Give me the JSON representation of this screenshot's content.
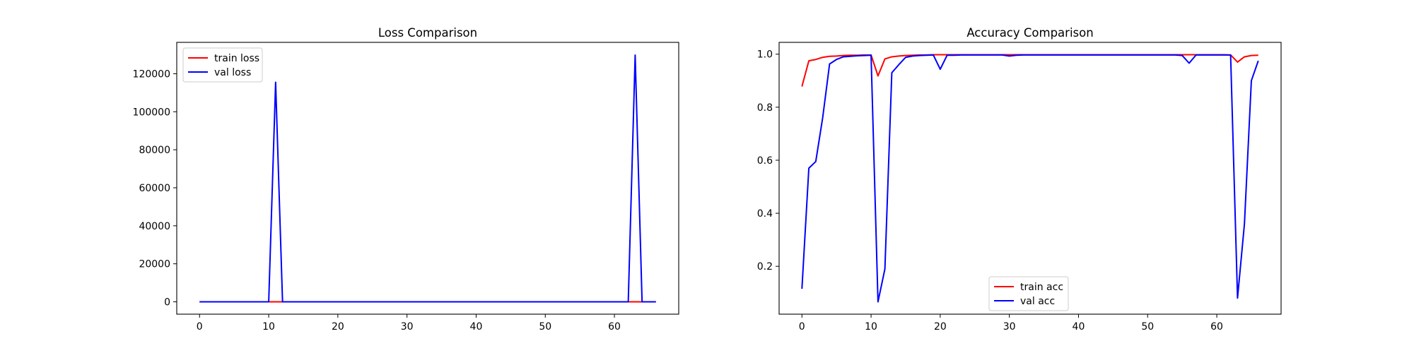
{
  "chart_data": [
    {
      "type": "line",
      "title": "Loss Comparison",
      "xlabel": "",
      "ylabel": "",
      "xlim": [
        -3.3,
        69.3
      ],
      "ylim": [
        -6500,
        136500
      ],
      "xticks": [
        0,
        10,
        20,
        30,
        40,
        50,
        60
      ],
      "yticks": [
        0,
        20000,
        40000,
        60000,
        80000,
        100000,
        120000
      ],
      "grid": false,
      "legend_position": "upper-left",
      "series": [
        {
          "name": "train loss",
          "color": "#ff0000",
          "x": [
            0,
            1,
            2,
            3,
            4,
            5,
            6,
            7,
            8,
            9,
            10,
            11,
            12,
            13,
            14,
            15,
            16,
            17,
            18,
            19,
            20,
            21,
            22,
            23,
            24,
            25,
            26,
            27,
            28,
            29,
            30,
            31,
            32,
            33,
            34,
            35,
            36,
            37,
            38,
            39,
            40,
            41,
            42,
            43,
            44,
            45,
            46,
            47,
            48,
            49,
            50,
            51,
            52,
            53,
            54,
            55,
            56,
            57,
            58,
            59,
            60,
            61,
            62,
            63,
            64,
            65,
            66
          ],
          "y": [
            0.4,
            0.1,
            0.06,
            0.05,
            0.04,
            0.03,
            0.03,
            0.02,
            0.02,
            0.02,
            0.02,
            0.3,
            0.08,
            0.05,
            0.04,
            0.03,
            0.03,
            0.02,
            0.02,
            0.02,
            0.02,
            0.02,
            0.02,
            0.01,
            0.01,
            0.01,
            0.01,
            0.01,
            0.01,
            0.01,
            0.01,
            0.01,
            0.01,
            0.01,
            0.01,
            0.01,
            0.01,
            0.01,
            0.01,
            0.01,
            0.01,
            0.01,
            0.01,
            0.01,
            0.01,
            0.01,
            0.01,
            0.01,
            0.01,
            0.01,
            0.01,
            0.01,
            0.01,
            0.01,
            0.01,
            0.01,
            0.01,
            0.01,
            0.01,
            0.01,
            0.01,
            0.01,
            0.02,
            0.1,
            0.05,
            0.03,
            0.03
          ]
        },
        {
          "name": "val loss",
          "color": "#0000ff",
          "x": [
            0,
            1,
            2,
            3,
            4,
            5,
            6,
            7,
            8,
            9,
            10,
            11,
            12,
            13,
            14,
            15,
            16,
            17,
            18,
            19,
            20,
            21,
            22,
            23,
            24,
            25,
            26,
            27,
            28,
            29,
            30,
            31,
            32,
            33,
            34,
            35,
            36,
            37,
            38,
            39,
            40,
            41,
            42,
            43,
            44,
            45,
            46,
            47,
            48,
            49,
            50,
            51,
            52,
            53,
            54,
            55,
            56,
            57,
            58,
            59,
            60,
            61,
            62,
            63,
            64,
            65,
            66
          ],
          "y": [
            5,
            2,
            1.5,
            1,
            0.5,
            0.3,
            0.2,
            0.2,
            0.2,
            0.2,
            0.3,
            115500,
            1.5,
            0.3,
            0.2,
            0.1,
            0.1,
            0.1,
            0.1,
            0.1,
            0.2,
            0.1,
            0.1,
            0.1,
            0.1,
            0.1,
            0.1,
            0.1,
            0.1,
            0.1,
            0.1,
            0.1,
            0.1,
            0.1,
            0.1,
            0.1,
            0.1,
            0.1,
            0.1,
            0.1,
            0.1,
            0.1,
            0.1,
            0.1,
            0.1,
            0.1,
            0.1,
            0.1,
            0.1,
            0.1,
            0.1,
            0.1,
            0.1,
            0.1,
            0.1,
            0.1,
            0.2,
            0.1,
            0.1,
            0.1,
            0.1,
            0.1,
            0.1,
            129800,
            2,
            1,
            0.5
          ]
        }
      ]
    },
    {
      "type": "line",
      "title": "Accuracy Comparison",
      "xlabel": "",
      "ylabel": "",
      "xlim": [
        -3.3,
        69.3
      ],
      "ylim": [
        0.0195,
        1.0445
      ],
      "xticks": [
        0,
        10,
        20,
        30,
        40,
        50,
        60
      ],
      "yticks": [
        0.2,
        0.4,
        0.6,
        0.8,
        1.0
      ],
      "grid": false,
      "legend_position": "lower-center",
      "series": [
        {
          "name": "train acc",
          "color": "#ff0000",
          "x": [
            0,
            1,
            2,
            3,
            4,
            5,
            6,
            7,
            8,
            9,
            10,
            11,
            12,
            13,
            14,
            15,
            16,
            17,
            18,
            19,
            20,
            21,
            22,
            23,
            24,
            25,
            26,
            27,
            28,
            29,
            30,
            31,
            32,
            33,
            34,
            35,
            36,
            37,
            38,
            39,
            40,
            41,
            42,
            43,
            44,
            45,
            46,
            47,
            48,
            49,
            50,
            51,
            52,
            53,
            54,
            55,
            56,
            57,
            58,
            59,
            60,
            61,
            62,
            63,
            64,
            65,
            66
          ],
          "y": [
            0.878,
            0.975,
            0.98,
            0.988,
            0.992,
            0.993,
            0.995,
            0.996,
            0.996,
            0.997,
            0.997,
            0.918,
            0.982,
            0.99,
            0.993,
            0.995,
            0.996,
            0.997,
            0.997,
            0.998,
            0.998,
            0.998,
            0.998,
            0.998,
            0.998,
            0.998,
            0.998,
            0.998,
            0.998,
            0.998,
            0.998,
            0.998,
            0.998,
            0.998,
            0.998,
            0.998,
            0.998,
            0.998,
            0.998,
            0.998,
            0.998,
            0.998,
            0.998,
            0.998,
            0.998,
            0.998,
            0.998,
            0.998,
            0.998,
            0.998,
            0.998,
            0.998,
            0.998,
            0.998,
            0.998,
            0.998,
            0.998,
            0.998,
            0.998,
            0.998,
            0.998,
            0.998,
            0.997,
            0.97,
            0.99,
            0.995,
            0.996
          ]
        },
        {
          "name": "val acc",
          "color": "#0000ff",
          "x": [
            0,
            1,
            2,
            3,
            4,
            5,
            6,
            7,
            8,
            9,
            10,
            11,
            12,
            13,
            14,
            15,
            16,
            17,
            18,
            19,
            20,
            21,
            22,
            23,
            24,
            25,
            26,
            27,
            28,
            29,
            30,
            31,
            32,
            33,
            34,
            35,
            36,
            37,
            38,
            39,
            40,
            41,
            42,
            43,
            44,
            45,
            46,
            47,
            48,
            49,
            50,
            51,
            52,
            53,
            54,
            55,
            56,
            57,
            58,
            59,
            60,
            61,
            62,
            63,
            64,
            65,
            66
          ],
          "y": [
            0.115,
            0.57,
            0.595,
            0.76,
            0.963,
            0.98,
            0.99,
            0.992,
            0.994,
            0.995,
            0.996,
            0.066,
            0.19,
            0.93,
            0.96,
            0.988,
            0.993,
            0.995,
            0.996,
            0.997,
            0.943,
            0.996,
            0.996,
            0.997,
            0.997,
            0.997,
            0.997,
            0.997,
            0.997,
            0.997,
            0.993,
            0.996,
            0.997,
            0.997,
            0.997,
            0.997,
            0.997,
            0.997,
            0.997,
            0.997,
            0.997,
            0.997,
            0.997,
            0.997,
            0.997,
            0.997,
            0.997,
            0.997,
            0.997,
            0.997,
            0.997,
            0.997,
            0.997,
            0.997,
            0.997,
            0.995,
            0.966,
            0.997,
            0.997,
            0.997,
            0.997,
            0.997,
            0.997,
            0.08,
            0.36,
            0.9,
            0.975
          ]
        }
      ]
    }
  ]
}
